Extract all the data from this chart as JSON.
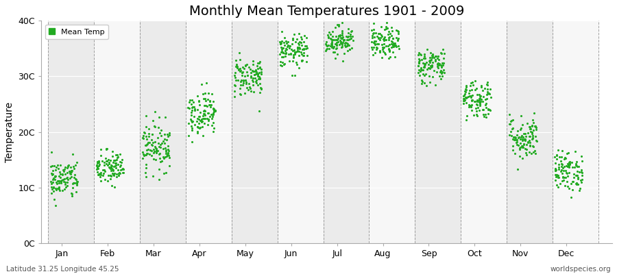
{
  "title": "Monthly Mean Temperatures 1901 - 2009",
  "ylabel": "Temperature",
  "xlabel_months": [
    "Jan",
    "Feb",
    "Mar",
    "Apr",
    "May",
    "Jun",
    "Jul",
    "Aug",
    "Sep",
    "Oct",
    "Nov",
    "Dec"
  ],
  "ytick_labels": [
    "0C",
    "10C",
    "20C",
    "30C",
    "40C"
  ],
  "ytick_values": [
    0,
    10,
    20,
    30,
    40
  ],
  "ylim": [
    0,
    40
  ],
  "dot_color": "#22aa22",
  "background_colors": [
    "#ebebeb",
    "#f7f7f7"
  ],
  "footer_left": "Latitude 31.25 Longitude 45.25",
  "footer_right": "worldspecies.org",
  "legend_label": "Mean Temp",
  "title_fontsize": 14,
  "monthly_means": [
    11.5,
    13.5,
    17.5,
    23.5,
    30.0,
    34.5,
    36.5,
    36.0,
    32.0,
    26.0,
    19.0,
    13.0
  ],
  "monthly_stds": [
    1.8,
    1.6,
    2.2,
    2.0,
    1.8,
    1.5,
    1.3,
    1.4,
    1.6,
    1.8,
    2.0,
    1.8
  ],
  "n_years": 109,
  "seed": 42
}
